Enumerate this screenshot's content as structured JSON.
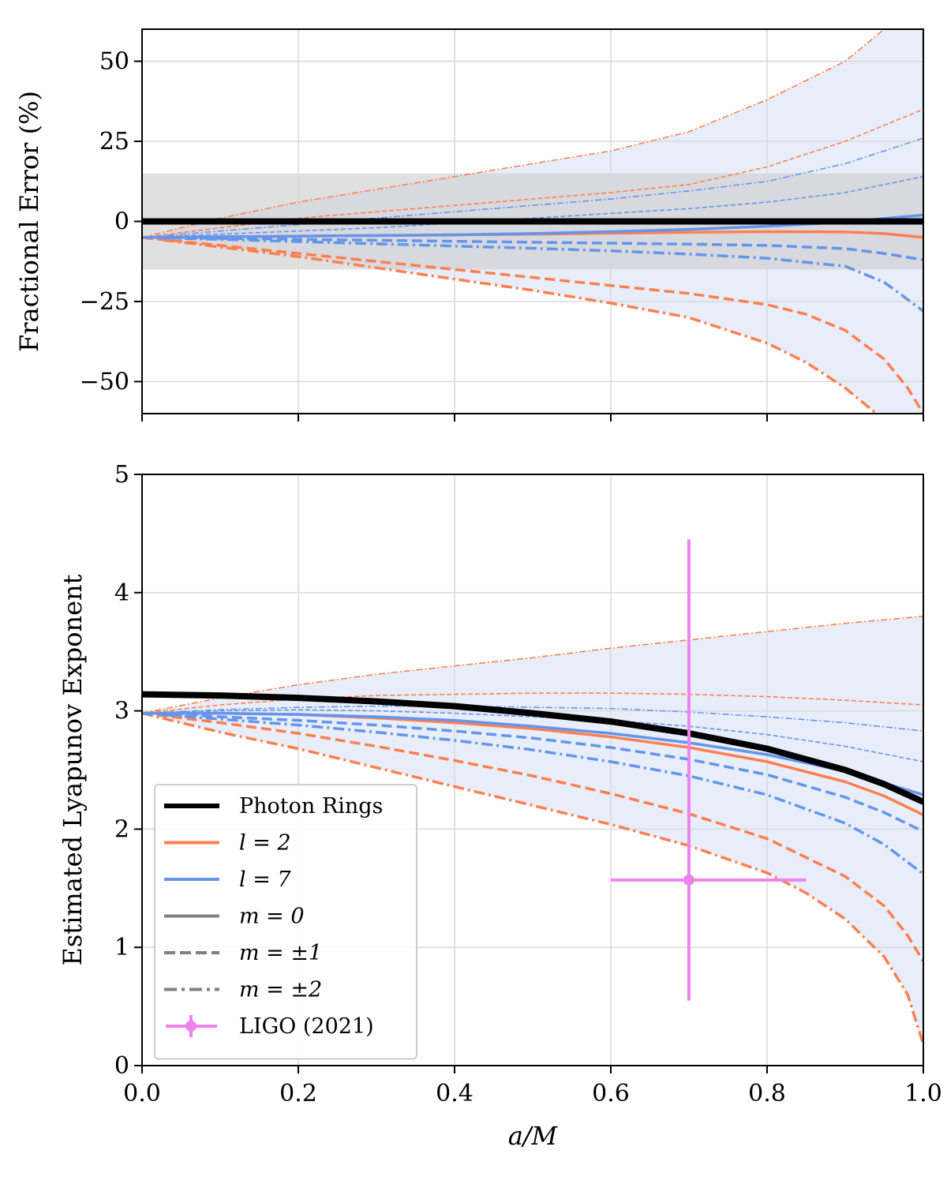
{
  "chart_data": [
    {
      "type": "line",
      "panel": "top",
      "ylabel": "Fractional Error (%)",
      "xlabel": "",
      "xlim": [
        0,
        1
      ],
      "ylim": [
        -60,
        60
      ],
      "yticks": [
        50,
        25,
        0,
        -25,
        -50
      ],
      "ytick_labels": [
        "50",
        "25",
        "0",
        "−25",
        "−50"
      ],
      "grid": true,
      "band": {
        "name": "±15% band",
        "ymin": -15,
        "ymax": 15,
        "color": "#cccccc"
      },
      "envelope": {
        "name": "spread envelope",
        "color": "#e8eef9"
      },
      "series": [
        {
          "name": "Photon Rings",
          "color": "#000000",
          "style": "solid",
          "width": 8,
          "x": [
            0,
            1
          ],
          "y": [
            0,
            0
          ]
        },
        {
          "name": "l=2, m=0",
          "color": "#ff7f50",
          "style": "solid",
          "width": 3.5,
          "x": [
            0,
            0.1,
            0.2,
            0.3,
            0.4,
            0.5,
            0.6,
            0.7,
            0.8,
            0.9,
            0.95,
            1.0
          ],
          "y": [
            -5,
            -4.8,
            -4.6,
            -4.4,
            -4.2,
            -4.0,
            -3.7,
            -3.4,
            -3.2,
            -3.3,
            -3.8,
            -5
          ]
        },
        {
          "name": "l=2, m=+1",
          "color": "#ff7f50",
          "style": "dashed",
          "width": 3.5,
          "x": [
            0,
            0.1,
            0.2,
            0.3,
            0.4,
            0.5,
            0.6,
            0.7,
            0.8,
            0.85,
            0.9,
            0.95,
            0.98,
            1.0
          ],
          "y": [
            -5,
            -7.5,
            -10,
            -12.5,
            -15,
            -17.5,
            -20,
            -22.5,
            -26,
            -29,
            -34,
            -43,
            -52,
            -60
          ]
        },
        {
          "name": "l=2, m=-1",
          "color": "#ff7f50",
          "style": "dashed",
          "width": 1.6,
          "x": [
            0,
            0.1,
            0.2,
            0.3,
            0.4,
            0.5,
            0.6,
            0.7,
            0.8,
            0.9,
            1.0
          ],
          "y": [
            -5,
            -2,
            1,
            3,
            5,
            7,
            9,
            11.5,
            17,
            25,
            35
          ]
        },
        {
          "name": "l=2, m=+2",
          "color": "#ff7f50",
          "style": "dashdot",
          "width": 3.5,
          "x": [
            0,
            0.1,
            0.2,
            0.3,
            0.4,
            0.5,
            0.6,
            0.7,
            0.8,
            0.85,
            0.9,
            0.94
          ],
          "y": [
            -5,
            -8,
            -11,
            -14.5,
            -18,
            -21.5,
            -25.5,
            -30,
            -38,
            -44,
            -52,
            -60
          ]
        },
        {
          "name": "l=2, m=-2",
          "color": "#ff7f50",
          "style": "dashdot",
          "width": 1.6,
          "x": [
            0,
            0.1,
            0.2,
            0.3,
            0.4,
            0.5,
            0.6,
            0.7,
            0.8,
            0.9,
            0.95
          ],
          "y": [
            -5,
            1,
            6,
            10,
            14,
            18,
            22,
            28,
            38,
            50,
            60
          ]
        },
        {
          "name": "l=7, m=0",
          "color": "#6495ed",
          "style": "solid",
          "width": 3.5,
          "x": [
            0,
            0.1,
            0.2,
            0.3,
            0.4,
            0.5,
            0.6,
            0.7,
            0.8,
            0.9,
            1.0
          ],
          "y": [
            -5,
            -4.8,
            -4.6,
            -4.4,
            -4.2,
            -3.8,
            -3.2,
            -2.5,
            -1.5,
            -0.2,
            2
          ]
        },
        {
          "name": "l=7, m=+1",
          "color": "#6495ed",
          "style": "dashed",
          "width": 3.5,
          "x": [
            0,
            0.1,
            0.2,
            0.3,
            0.4,
            0.5,
            0.6,
            0.7,
            0.8,
            0.9,
            0.95,
            1.0
          ],
          "y": [
            -5,
            -5.3,
            -5.6,
            -5.9,
            -6.2,
            -6.5,
            -6.8,
            -7.1,
            -7.5,
            -8.5,
            -10,
            -12
          ]
        },
        {
          "name": "l=7, m=-1",
          "color": "#6495ed",
          "style": "dashed",
          "width": 1.6,
          "x": [
            0,
            0.1,
            0.2,
            0.3,
            0.4,
            0.5,
            0.6,
            0.7,
            0.8,
            0.9,
            1.0
          ],
          "y": [
            -5,
            -4,
            -3,
            -2,
            -0.5,
            1,
            2.5,
            4,
            6,
            9,
            14
          ]
        },
        {
          "name": "l=7, m=+2",
          "color": "#6495ed",
          "style": "dashdot",
          "width": 3.5,
          "x": [
            0,
            0.1,
            0.2,
            0.3,
            0.4,
            0.5,
            0.6,
            0.7,
            0.8,
            0.9,
            0.95,
            1.0
          ],
          "y": [
            -5,
            -5.6,
            -6.3,
            -7,
            -7.7,
            -8.4,
            -9.2,
            -10.2,
            -11.5,
            -14,
            -19,
            -28
          ]
        },
        {
          "name": "l=7, m=-2",
          "color": "#6495ed",
          "style": "dashdot",
          "width": 1.6,
          "x": [
            0,
            0.1,
            0.2,
            0.3,
            0.4,
            0.5,
            0.6,
            0.7,
            0.8,
            0.9,
            1.0
          ],
          "y": [
            -5,
            -3,
            -1,
            1,
            3,
            5,
            7,
            9.5,
            12.5,
            18,
            26
          ]
        }
      ]
    },
    {
      "type": "line",
      "panel": "bottom",
      "ylabel": "Estimated Lyapunov Exponent",
      "xlabel": "a/M",
      "xlim": [
        0,
        1
      ],
      "ylim": [
        0,
        5
      ],
      "yticks": [
        0,
        1,
        2,
        3,
        4,
        5
      ],
      "ytick_labels": [
        "0",
        "1",
        "2",
        "3",
        "4",
        "5"
      ],
      "xticks": [
        0,
        0.2,
        0.4,
        0.6,
        0.8,
        1.0
      ],
      "xtick_labels": [
        "0.0",
        "0.2",
        "0.4",
        "0.6",
        "0.8",
        "1.0"
      ],
      "grid": true,
      "envelope": {
        "name": "spread envelope",
        "color": "#e8eef9"
      },
      "series": [
        {
          "name": "Photon Rings",
          "color": "#000000",
          "style": "solid",
          "width": 8,
          "x": [
            0,
            0.1,
            0.2,
            0.3,
            0.4,
            0.5,
            0.6,
            0.7,
            0.8,
            0.9,
            0.95,
            1.0
          ],
          "y": [
            3.14,
            3.13,
            3.11,
            3.08,
            3.04,
            2.98,
            2.91,
            2.81,
            2.68,
            2.5,
            2.38,
            2.23
          ]
        },
        {
          "name": "l=2, m=0",
          "color": "#ff7f50",
          "style": "solid",
          "width": 3.5,
          "x": [
            0,
            0.1,
            0.2,
            0.3,
            0.4,
            0.5,
            0.6,
            0.7,
            0.8,
            0.9,
            0.95,
            1.0
          ],
          "y": [
            2.98,
            2.98,
            2.97,
            2.94,
            2.9,
            2.85,
            2.78,
            2.69,
            2.57,
            2.4,
            2.28,
            2.12
          ]
        },
        {
          "name": "l=2, m=+1",
          "color": "#ff7f50",
          "style": "dashed",
          "width": 3.5,
          "x": [
            0,
            0.1,
            0.2,
            0.3,
            0.4,
            0.5,
            0.6,
            0.7,
            0.8,
            0.9,
            0.95,
            0.98,
            1.0
          ],
          "y": [
            2.98,
            2.9,
            2.81,
            2.7,
            2.58,
            2.45,
            2.3,
            2.13,
            1.92,
            1.6,
            1.35,
            1.1,
            0.88
          ]
        },
        {
          "name": "l=2, m=-1",
          "color": "#ff7f50",
          "style": "dashed",
          "width": 1.6,
          "x": [
            0,
            0.1,
            0.2,
            0.3,
            0.4,
            0.5,
            0.6,
            0.7,
            0.8,
            0.9,
            1.0
          ],
          "y": [
            2.98,
            3.05,
            3.1,
            3.13,
            3.14,
            3.15,
            3.15,
            3.14,
            3.12,
            3.09,
            3.05
          ]
        },
        {
          "name": "l=2, m=+2",
          "color": "#ff7f50",
          "style": "dashdot",
          "width": 3.5,
          "x": [
            0,
            0.1,
            0.2,
            0.3,
            0.4,
            0.5,
            0.6,
            0.7,
            0.8,
            0.85,
            0.9,
            0.95,
            0.98,
            1.0
          ],
          "y": [
            2.98,
            2.82,
            2.68,
            2.52,
            2.36,
            2.2,
            2.04,
            1.86,
            1.63,
            1.46,
            1.24,
            0.92,
            0.6,
            0.18
          ]
        },
        {
          "name": "l=2, m=-2",
          "color": "#ff7f50",
          "style": "dashdot",
          "width": 1.6,
          "x": [
            0,
            0.1,
            0.2,
            0.3,
            0.4,
            0.5,
            0.6,
            0.7,
            0.8,
            0.9,
            1.0
          ],
          "y": [
            2.98,
            3.11,
            3.22,
            3.31,
            3.38,
            3.45,
            3.53,
            3.6,
            3.67,
            3.74,
            3.8
          ]
        },
        {
          "name": "l=7, m=0",
          "color": "#6495ed",
          "style": "solid",
          "width": 3.5,
          "x": [
            0,
            0.1,
            0.2,
            0.3,
            0.4,
            0.5,
            0.6,
            0.7,
            0.8,
            0.9,
            1.0
          ],
          "y": [
            2.98,
            2.98,
            2.97,
            2.95,
            2.92,
            2.87,
            2.81,
            2.73,
            2.63,
            2.49,
            2.29
          ]
        },
        {
          "name": "l=7, m=+1",
          "color": "#6495ed",
          "style": "dashed",
          "width": 3.5,
          "x": [
            0,
            0.1,
            0.2,
            0.3,
            0.4,
            0.5,
            0.6,
            0.7,
            0.8,
            0.9,
            0.95,
            1.0
          ],
          "y": [
            2.98,
            2.95,
            2.92,
            2.88,
            2.83,
            2.77,
            2.69,
            2.59,
            2.46,
            2.27,
            2.14,
            1.98
          ]
        },
        {
          "name": "l=7, m=-1",
          "color": "#6495ed",
          "style": "dashed",
          "width": 1.6,
          "x": [
            0,
            0.1,
            0.2,
            0.3,
            0.4,
            0.5,
            0.6,
            0.7,
            0.8,
            0.9,
            1.0
          ],
          "y": [
            2.98,
            3.0,
            3.01,
            3.0,
            2.98,
            2.95,
            2.92,
            2.87,
            2.8,
            2.7,
            2.57
          ]
        },
        {
          "name": "l=7, m=+2",
          "color": "#6495ed",
          "style": "dashdot",
          "width": 3.5,
          "x": [
            0,
            0.1,
            0.2,
            0.3,
            0.4,
            0.5,
            0.6,
            0.7,
            0.8,
            0.9,
            0.95,
            1.0
          ],
          "y": [
            2.98,
            2.93,
            2.88,
            2.82,
            2.75,
            2.67,
            2.57,
            2.45,
            2.29,
            2.05,
            1.87,
            1.62
          ]
        },
        {
          "name": "l=7, m=-2",
          "color": "#6495ed",
          "style": "dashdot",
          "width": 1.6,
          "x": [
            0,
            0.1,
            0.2,
            0.3,
            0.4,
            0.5,
            0.6,
            0.7,
            0.8,
            0.9,
            1.0
          ],
          "y": [
            2.98,
            3.01,
            3.03,
            3.04,
            3.04,
            3.03,
            3.02,
            2.99,
            2.95,
            2.9,
            2.83
          ]
        }
      ],
      "errorbar": {
        "name": "LIGO (2021)",
        "color": "#ee82ee",
        "x": 0.7,
        "y": 1.57,
        "xerr": [
          0.1,
          0.15
        ],
        "yerr": [
          1.02,
          2.88
        ]
      },
      "legend": {
        "placement": "lower-left",
        "entries": [
          {
            "label": "Photon Rings",
            "color": "#000000",
            "style": "solid",
            "kind": "line-thick"
          },
          {
            "label": "l = 2",
            "color": "#ff7f50",
            "style": "solid",
            "kind": "line"
          },
          {
            "label": "l = 7",
            "color": "#6495ed",
            "style": "solid",
            "kind": "line"
          },
          {
            "label": "m = 0",
            "color": "#808080",
            "style": "solid",
            "kind": "line"
          },
          {
            "label": "m = ±1",
            "color": "#808080",
            "style": "dashed",
            "kind": "line"
          },
          {
            "label": "m = ±2",
            "color": "#808080",
            "style": "dashdot",
            "kind": "line"
          },
          {
            "label": "LIGO (2021)",
            "color": "#ee82ee",
            "style": "solid",
            "kind": "errorbar"
          }
        ]
      }
    }
  ]
}
